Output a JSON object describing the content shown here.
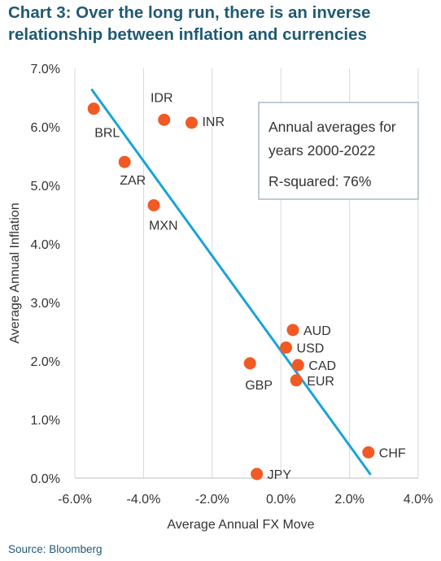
{
  "title": "Chart 3: Over the long run, there is an inverse relationship between inflation and currencies",
  "source": "Source: Bloomberg",
  "colors": {
    "title": "#1f5a73",
    "point": "#f15a24",
    "trendline": "#1aa3d9",
    "grid": "#d9d9d9",
    "box_border": "#a9bcc4"
  },
  "chart_data": {
    "type": "scatter",
    "xlabel": "Average Annual FX Move",
    "ylabel": "Average Annual Inflation",
    "xlim": [
      -6.0,
      4.0
    ],
    "ylim": [
      0.0,
      7.0
    ],
    "x_ticks": [
      "-6.0%",
      "-4.0%",
      "-2.0%",
      "0.0%",
      "2.0%",
      "4.0%"
    ],
    "y_ticks": [
      "0.0%",
      "1.0%",
      "2.0%",
      "3.0%",
      "4.0%",
      "5.0%",
      "6.0%",
      "7.0%"
    ],
    "grid": "vertical",
    "annotation": [
      "Annual averages for",
      "years 2000-2022",
      "R-squared: 76%"
    ],
    "trendline": {
      "x": [
        -5.5,
        2.6
      ],
      "y": [
        6.63,
        0.07
      ]
    },
    "points": [
      {
        "label": "BRL",
        "x": -5.45,
        "y": 6.31
      },
      {
        "label": "IDR",
        "x": -3.4,
        "y": 6.12
      },
      {
        "label": "INR",
        "x": -2.6,
        "y": 6.07
      },
      {
        "label": "ZAR",
        "x": -4.55,
        "y": 5.4
      },
      {
        "label": "MXN",
        "x": -3.7,
        "y": 4.66
      },
      {
        "label": "AUD",
        "x": 0.35,
        "y": 2.53
      },
      {
        "label": "USD",
        "x": 0.15,
        "y": 2.23
      },
      {
        "label": "CAD",
        "x": 0.5,
        "y": 1.93
      },
      {
        "label": "GBP",
        "x": -0.9,
        "y": 1.96
      },
      {
        "label": "EUR",
        "x": 0.45,
        "y": 1.67
      },
      {
        "label": "CHF",
        "x": 2.55,
        "y": 0.44
      },
      {
        "label": "JPY",
        "x": -0.7,
        "y": 0.07
      }
    ]
  }
}
